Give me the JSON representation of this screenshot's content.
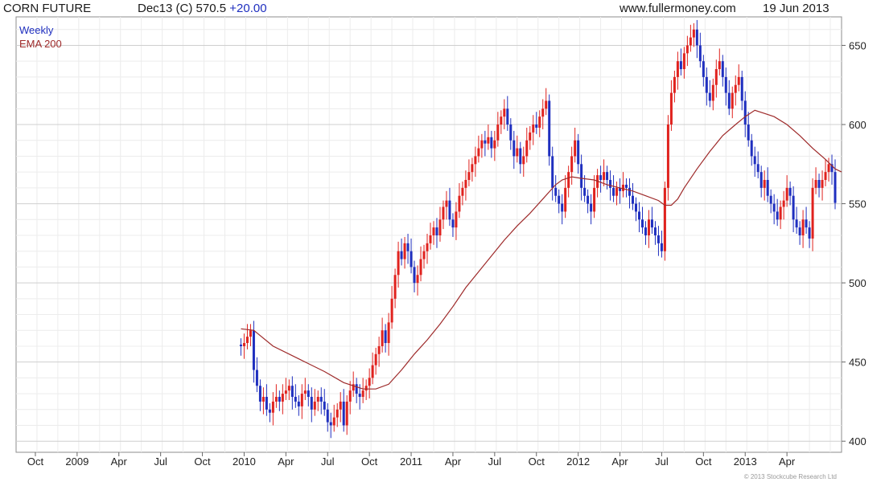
{
  "header": {
    "symbol": "CORN FUTURE",
    "contract": "Dec13 (C)",
    "last": "570.5",
    "change": "+20.00",
    "site": "www.fullermoney.com",
    "date": "19 Jun 2013"
  },
  "legend": {
    "series1": "Weekly",
    "series2": "EMA 200"
  },
  "copyright": "© 2013 Stockcube Research Ltd",
  "colors": {
    "up": "#1f2fbf",
    "down": "#e0221e",
    "ema": "#9e2a2a",
    "grid": "#d8d8d8",
    "legend_weekly": "#1f2fbf",
    "legend_ema": "#9e2a2a"
  },
  "chart_data": {
    "type": "candlestick",
    "ylim": [
      393,
      668
    ],
    "y_ticks": [
      400,
      450,
      500,
      550,
      600,
      650
    ],
    "x_ticks": [
      "Oct",
      "2009",
      "Apr",
      "Jul",
      "Oct",
      "2010",
      "Apr",
      "Jul",
      "Oct",
      "2011",
      "Apr",
      "Jul",
      "Oct",
      "2012",
      "Apr",
      "Jul",
      "Oct",
      "2013",
      "Apr"
    ],
    "x_tick_weeks": [
      0,
      13,
      26,
      39,
      52,
      65,
      78,
      91,
      104,
      117,
      130,
      143,
      156,
      169,
      182,
      195,
      208,
      221,
      234
    ],
    "x_week_range": [
      -6,
      251
    ],
    "series": [
      {
        "name": "Weekly",
        "start_week": 64,
        "closes": [
          461,
          460,
          462,
          466,
          470,
          445,
          435,
          425,
          428,
          420,
          418,
          425,
          428,
          425,
          430,
          432,
          435,
          428,
          425,
          422,
          430,
          432,
          428,
          420,
          425,
          428,
          425,
          420,
          412,
          410,
          415,
          420,
          425,
          410,
          425,
          432,
          436,
          430,
          428,
          432,
          435,
          440,
          448,
          455,
          460,
          470,
          462,
          475,
          490,
          505,
          520,
          515,
          525,
          520,
          510,
          500,
          505,
          515,
          520,
          525,
          530,
          535,
          530,
          540,
          548,
          552,
          540,
          535,
          545,
          555,
          560,
          565,
          570,
          575,
          580,
          585,
          590,
          588,
          592,
          585,
          590,
          600,
          605,
          610,
          600,
          590,
          580,
          585,
          575,
          580,
          590,
          595,
          600,
          598,
          605,
          610,
          615,
          580,
          560,
          555,
          550,
          545,
          560,
          570,
          580,
          590,
          575,
          560,
          555,
          550,
          545,
          560,
          568,
          565,
          570,
          565,
          560,
          555,
          560,
          558,
          562,
          560,
          555,
          550,
          545,
          540,
          535,
          530,
          540,
          535,
          530,
          525,
          520,
          560,
          600,
          620,
          630,
          640,
          635,
          645,
          650,
          655,
          660,
          650,
          640,
          630,
          620,
          615,
          625,
          635,
          640,
          630,
          620,
          610,
          620,
          625,
          630,
          615,
          600,
          590,
          580,
          575,
          570,
          560,
          565,
          555,
          550,
          545,
          540,
          548,
          552,
          560,
          555,
          540,
          535,
          530,
          540,
          535,
          528,
          560,
          565,
          560,
          565,
          570,
          575,
          570,
          570.5
        ],
        "opens": [
          460,
          462,
          466,
          470,
          445,
          435,
          425,
          428,
          420,
          418,
          425,
          428,
          425,
          430,
          432,
          435,
          428,
          425,
          422,
          430,
          432,
          428,
          420,
          425,
          428,
          425,
          420,
          412,
          410,
          415,
          420,
          425,
          410,
          425,
          432,
          436,
          430,
          428,
          432,
          435,
          440,
          448,
          455,
          460,
          470,
          462,
          475,
          490,
          505,
          520,
          515,
          525,
          520,
          510,
          500,
          505,
          515,
          520,
          525,
          530,
          535,
          530,
          540,
          548,
          552,
          540,
          535,
          545,
          555,
          560,
          565,
          570,
          575,
          580,
          585,
          590,
          588,
          592,
          585,
          590,
          600,
          605,
          610,
          600,
          590,
          580,
          585,
          575,
          580,
          590,
          595,
          600,
          598,
          605,
          610,
          615,
          580,
          560,
          555,
          550,
          545,
          560,
          570,
          580,
          590,
          575,
          560,
          555,
          550,
          545,
          560,
          568,
          565,
          570,
          565,
          560,
          555,
          560,
          558,
          562,
          560,
          555,
          550,
          545,
          540,
          535,
          530,
          540,
          535,
          530,
          525,
          520,
          560,
          600,
          620,
          630,
          640,
          635,
          645,
          650,
          655,
          660,
          650,
          640,
          630,
          620,
          615,
          625,
          635,
          640,
          630,
          620,
          610,
          620,
          625,
          630,
          615,
          600,
          590,
          580,
          575,
          570,
          560,
          565,
          555,
          550,
          545,
          540,
          548,
          552,
          560,
          555,
          540,
          535,
          530,
          540,
          535,
          528,
          560,
          565,
          560,
          565,
          570,
          575,
          570,
          550.5
        ]
      },
      {
        "name": "EMA 200",
        "points": [
          [
            64,
            471
          ],
          [
            68,
            470
          ],
          [
            74,
            460
          ],
          [
            82,
            452
          ],
          [
            90,
            444
          ],
          [
            96,
            437
          ],
          [
            102,
            433
          ],
          [
            106,
            433
          ],
          [
            110,
            436
          ],
          [
            114,
            445
          ],
          [
            118,
            455
          ],
          [
            122,
            464
          ],
          [
            126,
            474
          ],
          [
            130,
            485
          ],
          [
            134,
            497
          ],
          [
            138,
            507
          ],
          [
            142,
            517
          ],
          [
            146,
            527
          ],
          [
            150,
            536
          ],
          [
            154,
            544
          ],
          [
            158,
            553
          ],
          [
            162,
            562
          ],
          [
            164,
            565
          ],
          [
            167,
            567
          ],
          [
            170,
            566
          ],
          [
            174,
            565
          ],
          [
            178,
            562
          ],
          [
            182,
            560
          ],
          [
            186,
            558
          ],
          [
            190,
            555
          ],
          [
            194,
            552
          ],
          [
            196,
            549
          ],
          [
            198,
            549
          ],
          [
            200,
            553
          ],
          [
            202,
            560
          ],
          [
            206,
            572
          ],
          [
            210,
            583
          ],
          [
            214,
            593
          ],
          [
            218,
            600
          ],
          [
            221,
            605
          ],
          [
            224,
            609
          ],
          [
            227,
            607
          ],
          [
            230,
            605
          ],
          [
            234,
            600
          ],
          [
            238,
            593
          ],
          [
            242,
            585
          ],
          [
            246,
            578
          ],
          [
            249,
            572
          ],
          [
            251,
            570
          ]
        ]
      }
    ]
  }
}
